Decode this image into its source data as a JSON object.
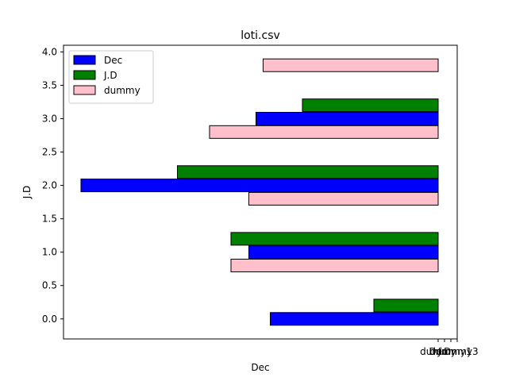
{
  "chart_data": {
    "type": "bar",
    "orientation": "horizontal",
    "title": "loti.csv",
    "xlabel": "Dec",
    "ylabel": "J.D",
    "ylim": [
      -0.3,
      4.1
    ],
    "yticks": [
      "0.0",
      "0.5",
      "1.0",
      "1.5",
      "2.0",
      "2.5",
      "3.0",
      "3.5",
      "4.0"
    ],
    "xticks": [
      "dummy",
      "Dec",
      "J.D",
      "dummy1",
      "dummy3"
    ],
    "grid": false,
    "legend": {
      "placement": "top-left"
    },
    "series": [
      {
        "name": "Dec",
        "color": "#0000ff",
        "bars": [
          {
            "y": 0.0,
            "length": 0.47
          },
          {
            "y": 1.0,
            "length": 0.53
          },
          {
            "y": 2.0,
            "length": 1.0
          },
          {
            "y": 3.0,
            "length": 0.51
          }
        ]
      },
      {
        "name": "J.D",
        "color": "#008000",
        "bars": [
          {
            "y": 0.2,
            "length": 0.18
          },
          {
            "y": 1.2,
            "length": 0.58
          },
          {
            "y": 2.2,
            "length": 0.73
          },
          {
            "y": 3.2,
            "length": 0.38
          }
        ]
      },
      {
        "name": "dummy",
        "color": "#ffc0cb",
        "bars": [
          {
            "y": 0.8,
            "length": 0.58
          },
          {
            "y": 1.8,
            "length": 0.53
          },
          {
            "y": 2.8,
            "length": 0.64
          },
          {
            "y": 3.8,
            "length": 0.49
          }
        ]
      }
    ]
  }
}
